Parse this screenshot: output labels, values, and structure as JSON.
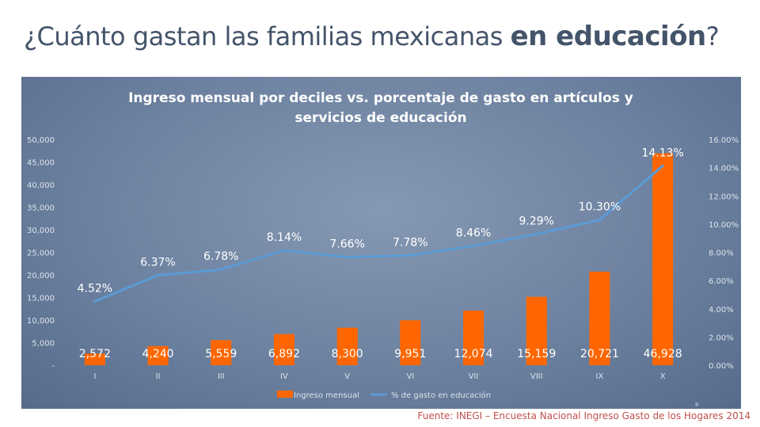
{
  "slide": {
    "title_lead": "¿Cuánto gastan las familias mexicanas ",
    "title_strong": "en educación",
    "title_trail": "?",
    "source": "Fuente: INEGI – Encuesta Nacional Ingreso Gasto de los Hogares 2014",
    "page_number": "8"
  },
  "colors": {
    "bar": "#ff6600",
    "line": "#5b9bd5",
    "text": "#ffffff",
    "axis_text": "#dde3ec",
    "title_text": "#44546a",
    "source_text": "#c0504d"
  },
  "chart_data": {
    "type": "bar",
    "title": "Ingreso mensual por deciles vs. porcentaje de gasto en artículos y servicios de educación",
    "title_lines": [
      "Ingreso mensual por deciles vs. porcentaje de gasto en artículos y",
      "servicios de educación"
    ],
    "categories": [
      "I",
      "II",
      "III",
      "IV",
      "V",
      "VI",
      "VII",
      "VIII",
      "IX",
      "X"
    ],
    "series": [
      {
        "name": "Ingreso mensual",
        "type": "bar",
        "axis": "left",
        "values": [
          2572,
          4240,
          5559,
          6892,
          8300,
          9951,
          12074,
          15159,
          20721,
          46928
        ],
        "labels": [
          "2,572",
          "4,240",
          "5,559",
          "6,892",
          "8,300",
          "9,951",
          "12,074",
          "15,159",
          "20,721",
          "46,928"
        ]
      },
      {
        "name": "% de gasto en educación",
        "type": "line",
        "axis": "right",
        "values": [
          4.52,
          6.37,
          6.78,
          8.14,
          7.66,
          7.78,
          8.46,
          9.29,
          10.3,
          14.13
        ],
        "labels": [
          "4.52%",
          "6.37%",
          "6.78%",
          "8.14%",
          "7.66%",
          "7.78%",
          "8.46%",
          "9.29%",
          "10.30%",
          "14.13%"
        ]
      }
    ],
    "y_left": {
      "range": [
        0,
        50000
      ],
      "ticks": [
        0,
        5000,
        10000,
        15000,
        20000,
        25000,
        30000,
        35000,
        40000,
        45000,
        50000
      ],
      "tick_labels": [
        "-",
        "5,000",
        "10,000",
        "15,000",
        "20,000",
        "25,000",
        "30,000",
        "35,000",
        "40,000",
        "45,000",
        "50,000"
      ]
    },
    "y_right": {
      "range": [
        0,
        16
      ],
      "ticks": [
        0,
        2,
        4,
        6,
        8,
        10,
        12,
        14,
        16
      ],
      "tick_labels": [
        "0.00%",
        "2.00%",
        "4.00%",
        "6.00%",
        "8.00%",
        "10.00%",
        "12.00%",
        "14.00%",
        "16.00%"
      ]
    },
    "legend_placement": "bottom",
    "grid": false
  }
}
